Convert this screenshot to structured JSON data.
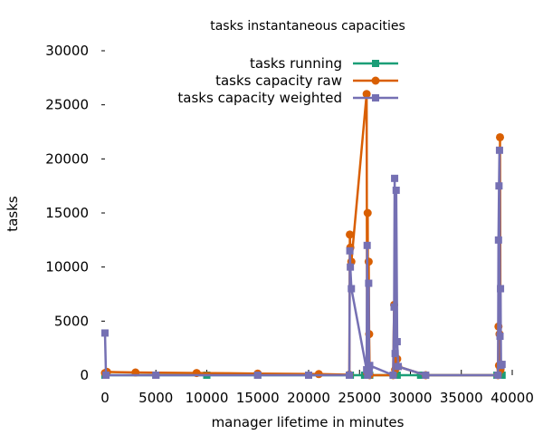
{
  "chart_data": {
    "type": "line",
    "title": "tasks instantaneous capacities",
    "xlabel": "manager lifetime in minutes",
    "ylabel": "tasks",
    "xlim": [
      0,
      40000
    ],
    "ylim": [
      0,
      30000
    ],
    "x_ticks": [
      "0",
      "5000",
      "10000",
      "15000",
      "20000",
      "25000",
      "30000",
      "35000",
      "40000"
    ],
    "y_ticks": [
      "0",
      "5000",
      "10000",
      "15000",
      "20000",
      "25000",
      "30000"
    ],
    "grid": false,
    "legend_position": "top-right",
    "series": [
      {
        "name": "tasks running",
        "color": "#1b9e77",
        "marker": "square",
        "points": [
          [
            0,
            0
          ],
          [
            5000,
            0
          ],
          [
            10000,
            0
          ],
          [
            15000,
            0
          ],
          [
            20000,
            0
          ],
          [
            24000,
            0
          ],
          [
            24100,
            0
          ],
          [
            25500,
            0
          ],
          [
            25800,
            0
          ],
          [
            26000,
            0
          ],
          [
            28500,
            0
          ],
          [
            28700,
            0
          ],
          [
            31000,
            0
          ],
          [
            38500,
            0
          ],
          [
            38700,
            0
          ],
          [
            39000,
            0
          ]
        ]
      },
      {
        "name": "tasks capacity raw",
        "color": "#d95f02",
        "marker": "circle",
        "points": [
          [
            0,
            200
          ],
          [
            200,
            300
          ],
          [
            3000,
            250
          ],
          [
            9000,
            200
          ],
          [
            15000,
            150
          ],
          [
            21000,
            100
          ],
          [
            24000,
            50
          ],
          [
            24050,
            13000
          ],
          [
            24100,
            11800
          ],
          [
            24200,
            10500
          ],
          [
            25700,
            26000
          ],
          [
            25750,
            200
          ],
          [
            25800,
            15000
          ],
          [
            25850,
            300
          ],
          [
            25900,
            10500
          ],
          [
            25950,
            3800
          ],
          [
            26000,
            0
          ],
          [
            28300,
            0
          ],
          [
            28400,
            6500
          ],
          [
            28500,
            500
          ],
          [
            28700,
            1500
          ],
          [
            28800,
            800
          ],
          [
            31500,
            0
          ],
          [
            38600,
            0
          ],
          [
            38650,
            4500
          ],
          [
            38700,
            900
          ],
          [
            38750,
            3800
          ],
          [
            38800,
            22000
          ],
          [
            38850,
            500
          ],
          [
            38900,
            1000
          ]
        ]
      },
      {
        "name": "tasks capacity weighted",
        "color": "#7570b3",
        "marker": "square",
        "points": [
          [
            0,
            3900
          ],
          [
            100,
            0
          ],
          [
            5000,
            0
          ],
          [
            15000,
            0
          ],
          [
            20000,
            0
          ],
          [
            24000,
            0
          ],
          [
            24050,
            11500
          ],
          [
            24100,
            10000
          ],
          [
            24200,
            8000
          ],
          [
            25700,
            500
          ],
          [
            25750,
            12000
          ],
          [
            25800,
            0
          ],
          [
            25900,
            8500
          ],
          [
            25950,
            300
          ],
          [
            26000,
            900
          ],
          [
            28300,
            0
          ],
          [
            28400,
            6300
          ],
          [
            28450,
            18200
          ],
          [
            28500,
            2000
          ],
          [
            28600,
            17100
          ],
          [
            28700,
            3100
          ],
          [
            28800,
            800
          ],
          [
            31500,
            0
          ],
          [
            38600,
            0
          ],
          [
            38650,
            12500
          ],
          [
            38700,
            17500
          ],
          [
            38750,
            20800
          ],
          [
            38800,
            3600
          ],
          [
            38850,
            8000
          ],
          [
            38900,
            900
          ],
          [
            39000,
            1000
          ]
        ]
      }
    ]
  }
}
